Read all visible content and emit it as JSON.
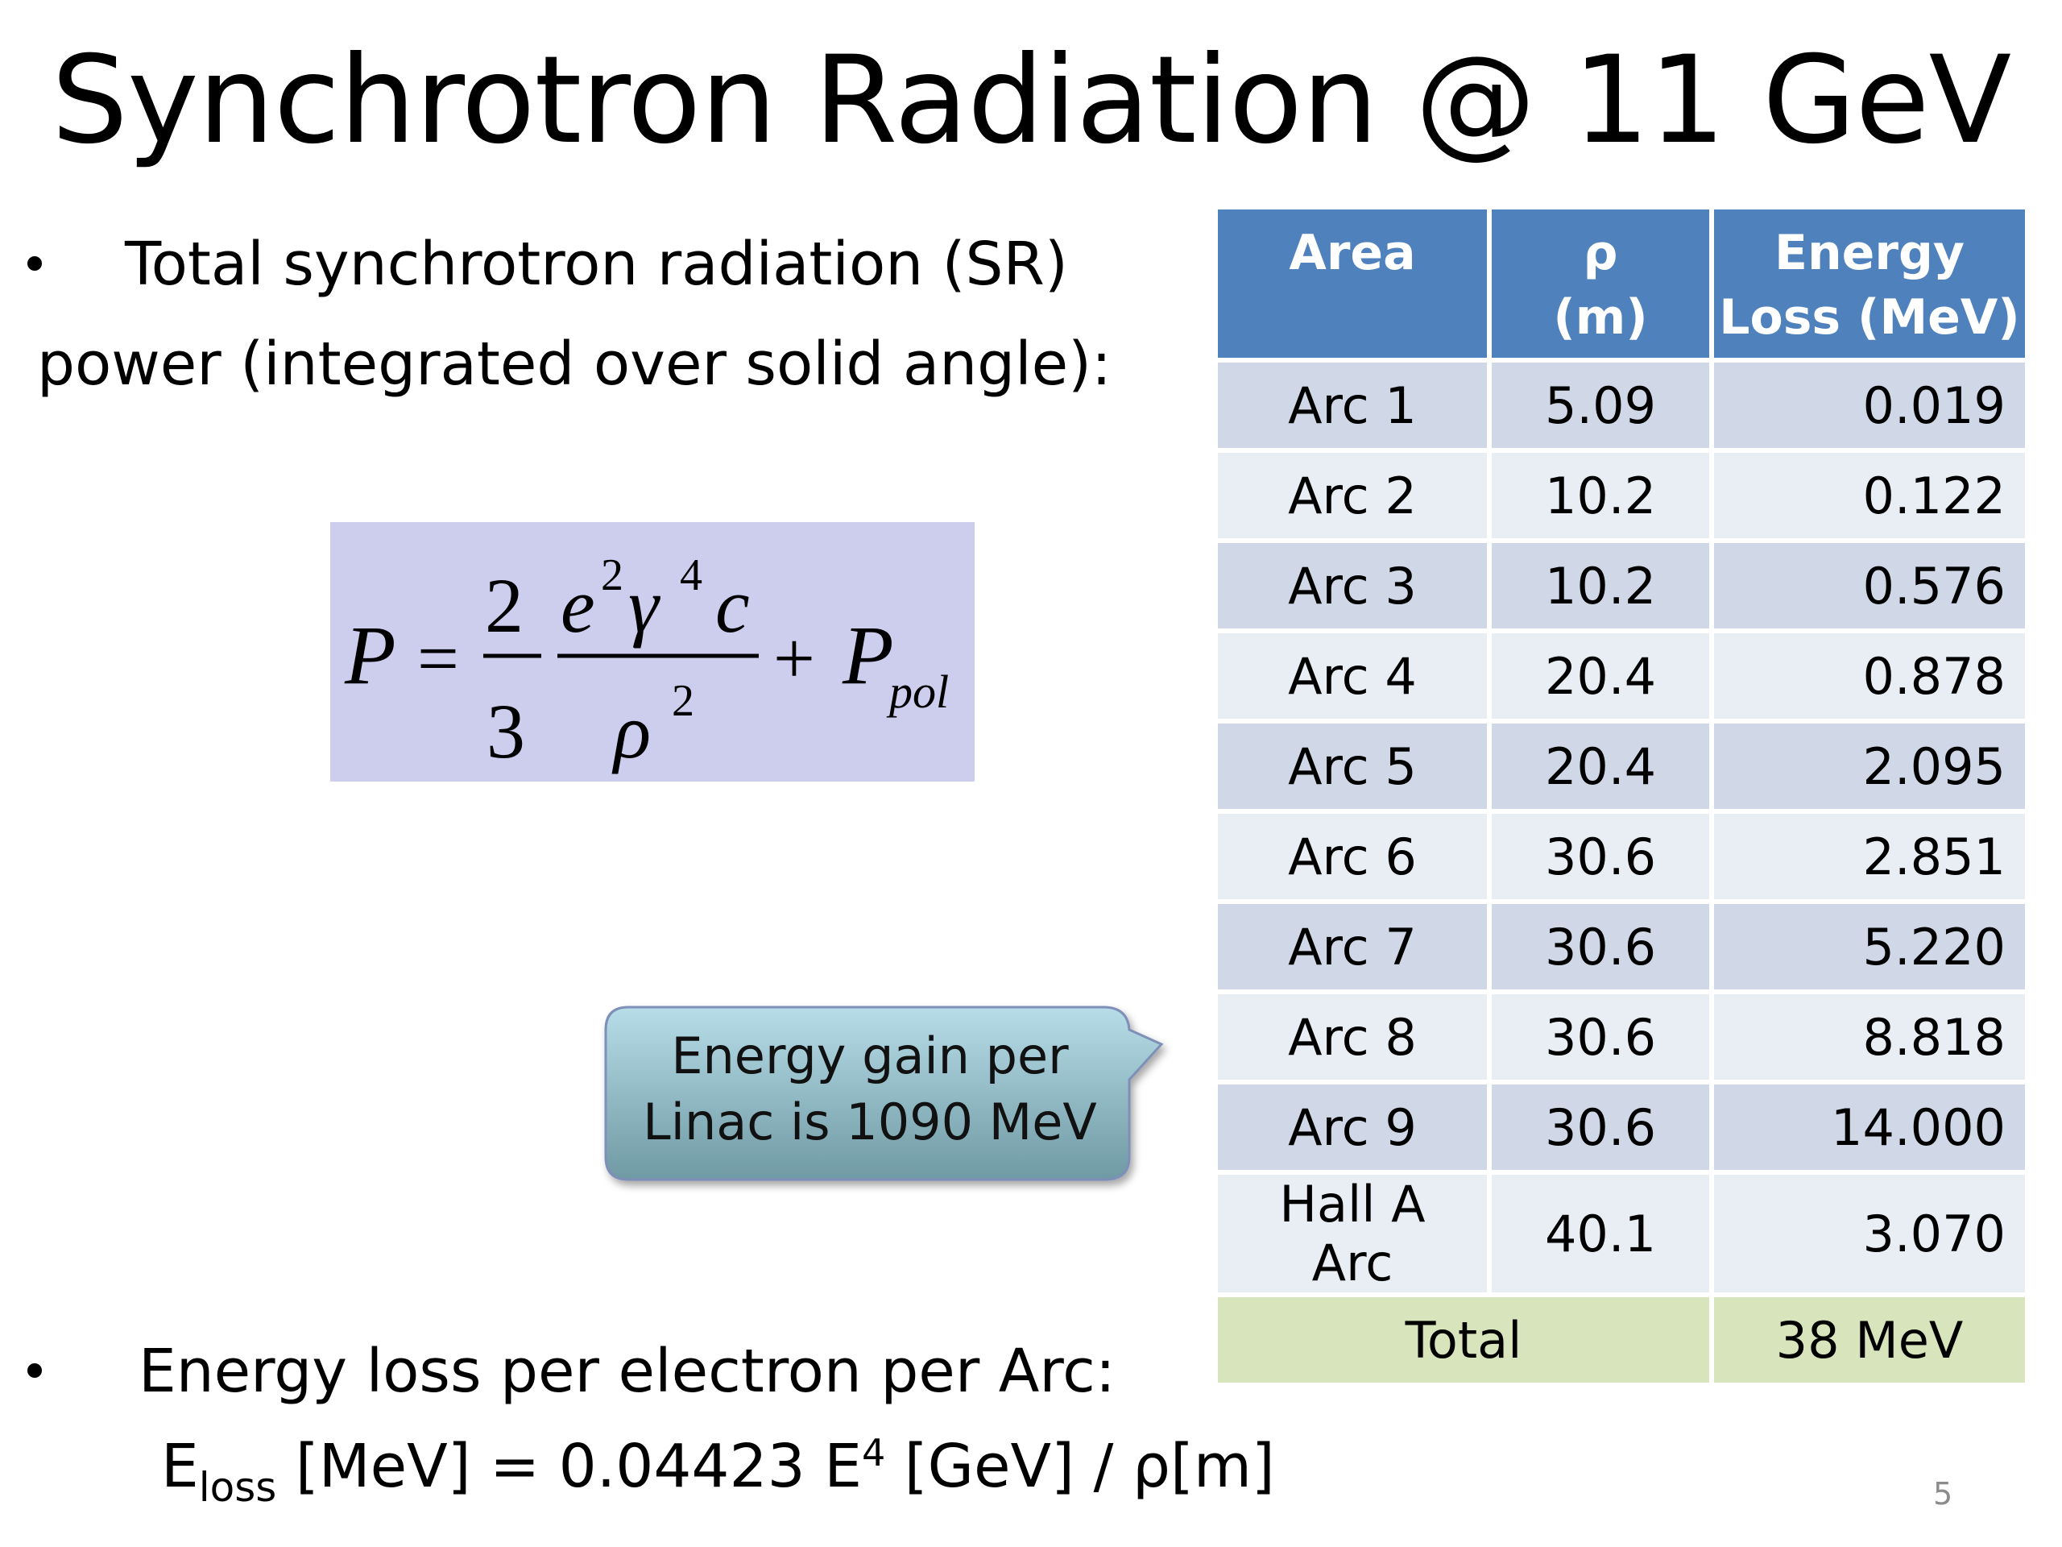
{
  "slide": {
    "title": "Synchrotron Radiation @ 11 GeV",
    "page_number": "5"
  },
  "bullets": {
    "sr_power_line1": "Total synchrotron radiation (SR)",
    "sr_power_line2": "power (integrated over solid angle):",
    "energy_loss_intro": "Energy loss per electron per Arc:"
  },
  "formula": {
    "lhs": "P",
    "equals": "=",
    "coef_num": "2",
    "coef_den": "3",
    "num_e": "e",
    "num_e_exp": "2",
    "num_gamma": "γ",
    "num_gamma_exp": "4",
    "num_c": "c",
    "den_rho": "ρ",
    "den_rho_exp": "2",
    "plus": "+",
    "p_pol": "P",
    "p_pol_sub": "pol"
  },
  "energy_loss_formula": {
    "e_symbol": "E",
    "e_sub": "loss",
    "middle": " [MeV] = 0.04423 E",
    "power": "4",
    "tail": " [GeV] / ρ[m]"
  },
  "callout": {
    "line1": "Energy gain per",
    "line2": "Linac is 1090 MeV",
    "fill_top": "#b7dde8",
    "fill_bottom": "#6f99a4"
  },
  "table": {
    "headers": {
      "area": "Area",
      "rho_line1": "ρ",
      "rho_line2": "(m)",
      "loss_line1": "Energy",
      "loss_line2": "Loss (MeV)"
    },
    "rows": [
      {
        "area": "Arc 1",
        "rho": "5.09",
        "loss": "0.019"
      },
      {
        "area": "Arc 2",
        "rho": "10.2",
        "loss": "0.122"
      },
      {
        "area": "Arc 3",
        "rho": "10.2",
        "loss": "0.576"
      },
      {
        "area": "Arc 4",
        "rho": "20.4",
        "loss": "0.878"
      },
      {
        "area": "Arc 5",
        "rho": "20.4",
        "loss": "2.095"
      },
      {
        "area": "Arc 6",
        "rho": "30.6",
        "loss": "2.851"
      },
      {
        "area": "Arc 7",
        "rho": "30.6",
        "loss": "5.220"
      },
      {
        "area": "Arc 8",
        "rho": "30.6",
        "loss": "8.818"
      },
      {
        "area": "Arc 9",
        "rho": "30.6",
        "loss": "14.000"
      },
      {
        "area": "Hall A Arc",
        "rho": "40.1",
        "loss": "3.070"
      }
    ],
    "total_label": "Total",
    "total_value": "38 MeV",
    "header_color": "#4f81bd",
    "row_odd_color": "#d0d8e8",
    "row_even_color": "#e9edf4",
    "total_color": "#d8e4bc"
  }
}
